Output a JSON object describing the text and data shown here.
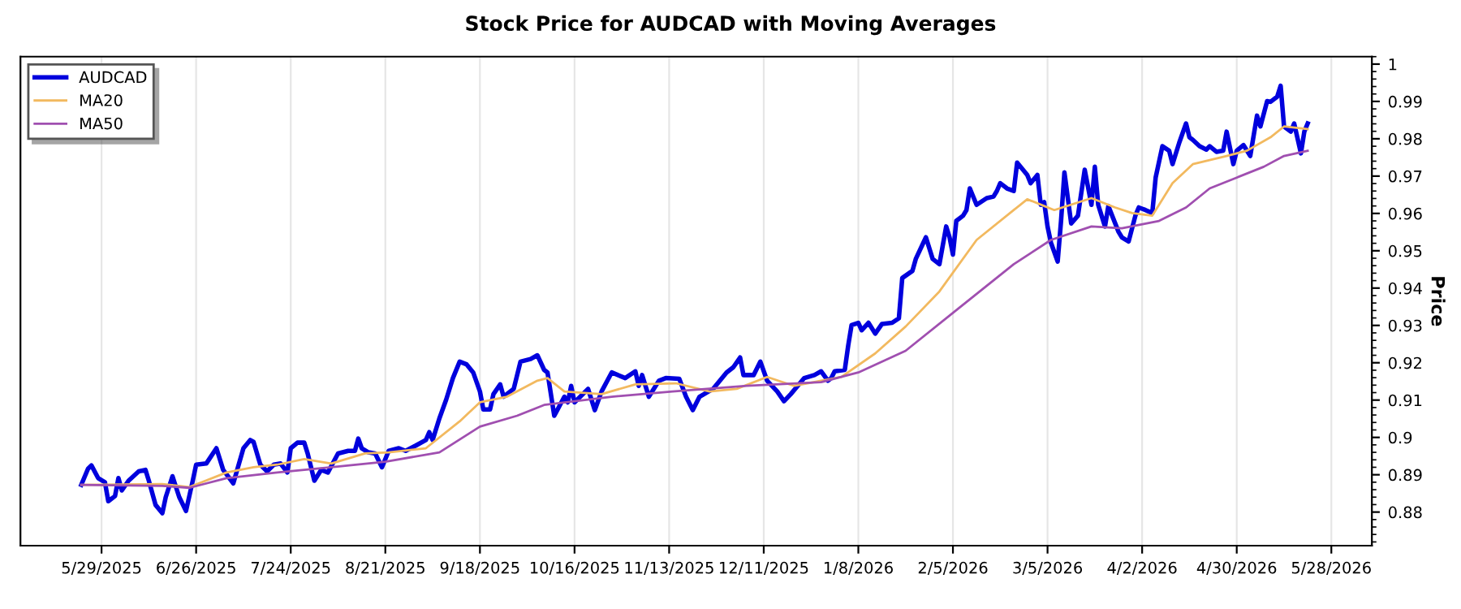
{
  "chart_data": {
    "type": "line",
    "title": "Stock Price for AUDCAD with Moving Averages",
    "ylabel": "Price",
    "grid": "x",
    "legend": "top left",
    "xlim": [
      "2025-05-05",
      "2026-06-09"
    ],
    "ylim": [
      0.871,
      1.002
    ],
    "xticks": [
      {
        "value": "2025-05-29",
        "label": "5/29/2025"
      },
      {
        "value": "2025-06-26",
        "label": "6/26/2025"
      },
      {
        "value": "2025-07-24",
        "label": "7/24/2025"
      },
      {
        "value": "2025-08-21",
        "label": "8/21/2025"
      },
      {
        "value": "2025-09-18",
        "label": "9/18/2025"
      },
      {
        "value": "2025-10-16",
        "label": "10/16/2025"
      },
      {
        "value": "2025-11-13",
        "label": "11/13/2025"
      },
      {
        "value": "2025-12-11",
        "label": "12/11/2025"
      },
      {
        "value": "2026-01-08",
        "label": "1/8/2026"
      },
      {
        "value": "2026-02-05",
        "label": "2/5/2026"
      },
      {
        "value": "2026-03-05",
        "label": "3/5/2026"
      },
      {
        "value": "2026-04-02",
        "label": "4/2/2026"
      },
      {
        "value": "2026-04-30",
        "label": "4/30/2026"
      },
      {
        "value": "2026-05-28",
        "label": "5/28/2026"
      }
    ],
    "yticks": [
      0.88,
      0.89,
      0.9,
      0.91,
      0.92,
      0.93,
      0.94,
      0.95,
      0.96,
      0.97,
      0.98,
      0.99,
      1
    ],
    "series": [
      {
        "name": "AUDCAD",
        "color": "#0000dd",
        "x": [
          "2025-05-23",
          "2025-05-25",
          "2025-05-26",
          "2025-05-28",
          "2025-05-30",
          "2025-05-31",
          "2025-06-02",
          "2025-06-03",
          "2025-06-04",
          "2025-06-06",
          "2025-06-09",
          "2025-06-11",
          "2025-06-12",
          "2025-06-14",
          "2025-06-16",
          "2025-06-17",
          "2025-06-19",
          "2025-06-21",
          "2025-06-23",
          "2025-06-25",
          "2025-06-26",
          "2025-06-29",
          "2025-07-02",
          "2025-07-04",
          "2025-07-07",
          "2025-07-10",
          "2025-07-12",
          "2025-07-13",
          "2025-07-15",
          "2025-07-17",
          "2025-07-19",
          "2025-07-21",
          "2025-07-23",
          "2025-07-24",
          "2025-07-26",
          "2025-07-28",
          "2025-07-29",
          "2025-07-31",
          "2025-08-02",
          "2025-08-04",
          "2025-08-07",
          "2025-08-10",
          "2025-08-12",
          "2025-08-13",
          "2025-08-14",
          "2025-08-16",
          "2025-08-18",
          "2025-08-20",
          "2025-08-22",
          "2025-08-25",
          "2025-08-27",
          "2025-08-30",
          "2025-09-02",
          "2025-09-03",
          "2025-09-04",
          "2025-09-06",
          "2025-09-08",
          "2025-09-10",
          "2025-09-12",
          "2025-09-14",
          "2025-09-16",
          "2025-09-18",
          "2025-09-19",
          "2025-09-21",
          "2025-09-22",
          "2025-09-24",
          "2025-09-25",
          "2025-09-28",
          "2025-09-30",
          "2025-10-03",
          "2025-10-05",
          "2025-10-07",
          "2025-10-08",
          "2025-10-10",
          "2025-10-13",
          "2025-10-14",
          "2025-10-15",
          "2025-10-16",
          "2025-10-20",
          "2025-10-22",
          "2025-10-24",
          "2025-10-27",
          "2025-10-31",
          "2025-11-03",
          "2025-11-04",
          "2025-11-05",
          "2025-11-07",
          "2025-11-10",
          "2025-11-12",
          "2025-11-16",
          "2025-11-18",
          "2025-11-20",
          "2025-11-22",
          "2025-11-26",
          "2025-11-30",
          "2025-12-02",
          "2025-12-04",
          "2025-12-05",
          "2025-12-08",
          "2025-12-10",
          "2025-12-12",
          "2025-12-15",
          "2025-12-17",
          "2025-12-19",
          "2025-12-23",
          "2025-12-26",
          "2025-12-28",
          "2025-12-30",
          "2025-12-31",
          "2026-01-01",
          "2026-01-04",
          "2026-01-05",
          "2026-01-06",
          "2026-01-08",
          "2026-01-09",
          "2026-01-11",
          "2026-01-13",
          "2026-01-15",
          "2026-01-18",
          "2026-01-20",
          "2026-01-21",
          "2026-01-24",
          "2026-01-25",
          "2026-01-28",
          "2026-01-30",
          "2026-02-01",
          "2026-02-03",
          "2026-02-04",
          "2026-02-05",
          "2026-02-06",
          "2026-02-08",
          "2026-02-09",
          "2026-02-10",
          "2026-02-12",
          "2026-02-15",
          "2026-02-17",
          "2026-02-18",
          "2026-02-19",
          "2026-02-21",
          "2026-02-23",
          "2026-02-24",
          "2026-02-27",
          "2026-02-28",
          "2026-03-02",
          "2026-03-03",
          "2026-03-04",
          "2026-03-05",
          "2026-03-06",
          "2026-03-08",
          "2026-03-09",
          "2026-03-10",
          "2026-03-12",
          "2026-03-14",
          "2026-03-16",
          "2026-03-18",
          "2026-03-19",
          "2026-03-20",
          "2026-03-22",
          "2026-03-23",
          "2026-03-26",
          "2026-03-27",
          "2026-03-29",
          "2026-03-31",
          "2026-04-01",
          "2026-04-03",
          "2026-04-05",
          "2026-04-06",
          "2026-04-08",
          "2026-04-10",
          "2026-04-11",
          "2026-04-13",
          "2026-04-15",
          "2026-04-16",
          "2026-04-17",
          "2026-04-19",
          "2026-04-21",
          "2026-04-22",
          "2026-04-24",
          "2026-04-26",
          "2026-04-27",
          "2026-04-29",
          "2026-04-30",
          "2026-05-02",
          "2026-05-04",
          "2026-05-06",
          "2026-05-07",
          "2026-05-09",
          "2026-05-10",
          "2026-05-12",
          "2026-05-13",
          "2026-05-14",
          "2026-05-16",
          "2026-05-17",
          "2026-05-19",
          "2026-05-20",
          "2026-05-21"
        ],
        "values": [
          0.8873,
          0.8916,
          0.8925,
          0.8891,
          0.888,
          0.8829,
          0.8843,
          0.8891,
          0.8858,
          0.8884,
          0.8909,
          0.8913,
          0.8884,
          0.8819,
          0.8797,
          0.884,
          0.8896,
          0.884,
          0.8803,
          0.8884,
          0.8927,
          0.893,
          0.8971,
          0.8913,
          0.8877,
          0.8971,
          0.8993,
          0.8988,
          0.8927,
          0.8909,
          0.8927,
          0.893,
          0.8906,
          0.8971,
          0.8986,
          0.8986,
          0.8957,
          0.8884,
          0.8913,
          0.8906,
          0.8957,
          0.8964,
          0.8964,
          0.8997,
          0.8971,
          0.896,
          0.8957,
          0.892,
          0.8964,
          0.8971,
          0.8964,
          0.8978,
          0.8993,
          0.9014,
          0.8993,
          0.9051,
          0.9101,
          0.9159,
          0.9203,
          0.9196,
          0.9174,
          0.9123,
          0.9075,
          0.9075,
          0.9116,
          0.9142,
          0.9109,
          0.913,
          0.9203,
          0.921,
          0.922,
          0.9181,
          0.9174,
          0.9058,
          0.9109,
          0.9094,
          0.9138,
          0.9094,
          0.913,
          0.9073,
          0.9123,
          0.9174,
          0.9159,
          0.9177,
          0.9138,
          0.9167,
          0.9109,
          0.9152,
          0.9159,
          0.9157,
          0.9109,
          0.9073,
          0.9109,
          0.913,
          0.9174,
          0.9188,
          0.9214,
          0.9167,
          0.9167,
          0.9203,
          0.9152,
          0.9123,
          0.9097,
          0.9116,
          0.9159,
          0.9167,
          0.9177,
          0.9152,
          0.9159,
          0.9177,
          0.9181,
          0.9246,
          0.9301,
          0.9307,
          0.9287,
          0.9307,
          0.9278,
          0.9304,
          0.9307,
          0.9319,
          0.9427,
          0.9446,
          0.9478,
          0.9536,
          0.9478,
          0.9464,
          0.9565,
          0.9536,
          0.949,
          0.958,
          0.9594,
          0.9609,
          0.9667,
          0.9623,
          0.9641,
          0.9645,
          0.966,
          0.9681,
          0.9667,
          0.966,
          0.9736,
          0.9703,
          0.9681,
          0.9703,
          0.9623,
          0.963,
          0.9565,
          0.9522,
          0.9471,
          0.958,
          0.971,
          0.9573,
          0.9594,
          0.9717,
          0.9623,
          0.9725,
          0.9623,
          0.9565,
          0.962,
          0.9551,
          0.9536,
          0.9525,
          0.9594,
          0.9616,
          0.9609,
          0.9601,
          0.9696,
          0.978,
          0.9768,
          0.9732,
          0.979,
          0.9841,
          0.9804,
          0.9797,
          0.978,
          0.9771,
          0.978,
          0.9765,
          0.9768,
          0.9819,
          0.9732,
          0.9768,
          0.9783,
          0.9754,
          0.9862,
          0.9833,
          0.9901,
          0.9899,
          0.9913,
          0.9942,
          0.9833,
          0.9819,
          0.9841,
          0.9761,
          0.9819,
          0.9841
        ]
      },
      {
        "name": "MA20",
        "color": "#f2b95f",
        "x": [
          "2025-05-23",
          "2025-06-16",
          "2025-06-24",
          "2025-07-05",
          "2025-07-13",
          "2025-07-20",
          "2025-07-28",
          "2025-08-05",
          "2025-08-15",
          "2025-08-22",
          "2025-09-02",
          "2025-09-12",
          "2025-09-18",
          "2025-09-26",
          "2025-10-05",
          "2025-10-08",
          "2025-10-13",
          "2025-10-24",
          "2025-11-03",
          "2025-11-15",
          "2025-11-25",
          "2025-12-03",
          "2025-12-12",
          "2025-12-20",
          "2026-01-03",
          "2026-01-13",
          "2026-01-22",
          "2026-02-01",
          "2026-02-12",
          "2026-02-23",
          "2026-02-27",
          "2026-03-07",
          "2026-03-18",
          "2026-03-25",
          "2026-03-30",
          "2026-04-05",
          "2026-04-11",
          "2026-04-17",
          "2026-04-27",
          "2026-05-03",
          "2026-05-10",
          "2026-05-14",
          "2026-05-21"
        ],
        "values": [
          0.8873,
          0.8875,
          0.8867,
          0.8906,
          0.892,
          0.8927,
          0.8942,
          0.893,
          0.8957,
          0.896,
          0.8971,
          0.9043,
          0.9094,
          0.9109,
          0.9152,
          0.9159,
          0.9123,
          0.9116,
          0.9142,
          0.9145,
          0.9123,
          0.913,
          0.9162,
          0.9138,
          0.9162,
          0.9225,
          0.9297,
          0.9391,
          0.9529,
          0.9609,
          0.9638,
          0.9609,
          0.9641,
          0.9616,
          0.9601,
          0.9594,
          0.9681,
          0.9732,
          0.9754,
          0.9768,
          0.9804,
          0.9833,
          0.9826
        ]
      },
      {
        "name": "MA50",
        "color": "#a04fb0",
        "x": [
          "2025-05-23",
          "2025-06-16",
          "2025-06-24",
          "2025-07-05",
          "2025-07-20",
          "2025-08-05",
          "2025-08-21",
          "2025-09-06",
          "2025-09-18",
          "2025-09-29",
          "2025-10-07",
          "2025-10-27",
          "2025-11-14",
          "2025-12-06",
          "2025-12-28",
          "2026-01-08",
          "2026-01-22",
          "2026-02-07",
          "2026-02-23",
          "2026-03-06",
          "2026-03-18",
          "2026-03-27",
          "2026-04-07",
          "2026-04-15",
          "2026-04-22",
          "2026-04-30",
          "2026-05-08",
          "2026-05-14",
          "2026-05-21"
        ],
        "values": [
          0.8873,
          0.887,
          0.8865,
          0.8891,
          0.8906,
          0.892,
          0.8935,
          0.896,
          0.9029,
          0.9058,
          0.9087,
          0.9109,
          0.9123,
          0.9138,
          0.9148,
          0.9174,
          0.9232,
          0.9348,
          0.9464,
          0.9529,
          0.9565,
          0.956,
          0.958,
          0.9616,
          0.9667,
          0.9696,
          0.9725,
          0.9754,
          0.9768
        ]
      }
    ]
  }
}
